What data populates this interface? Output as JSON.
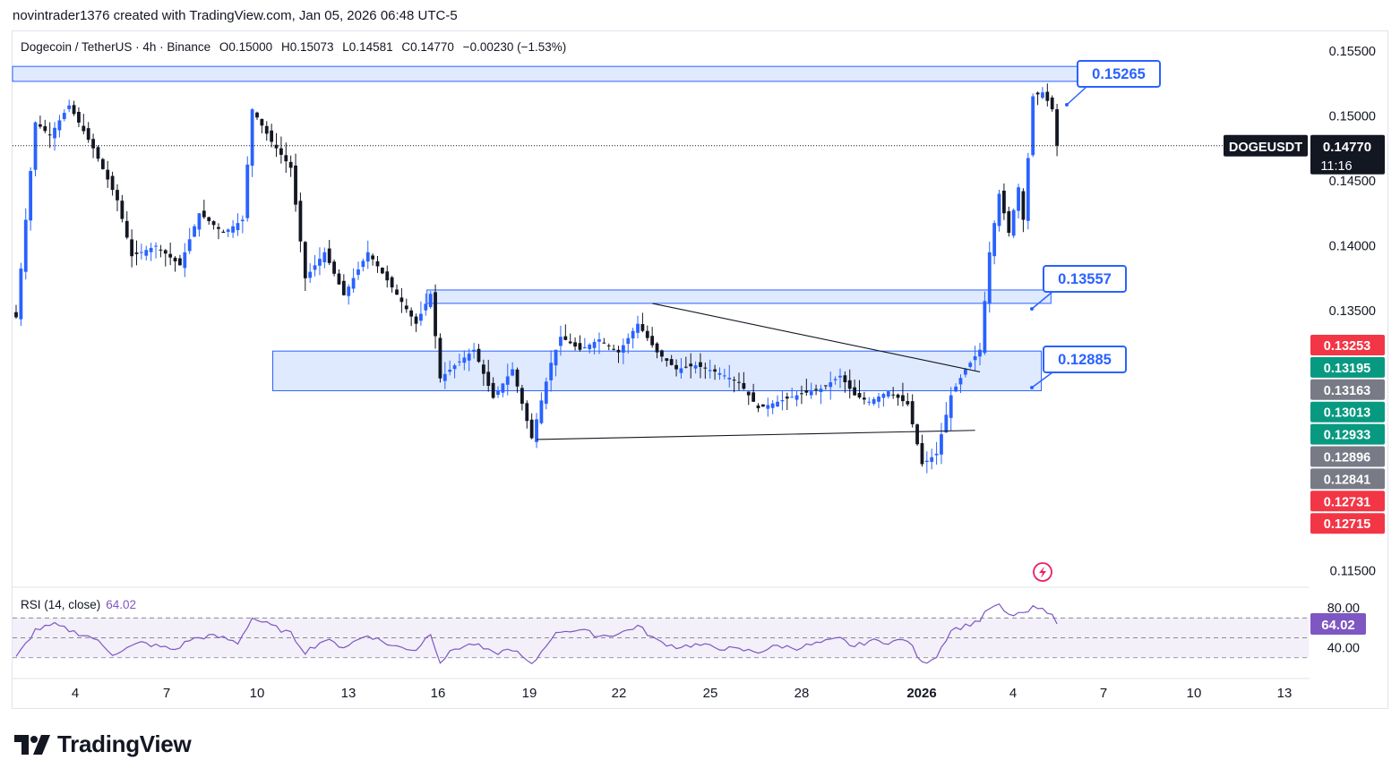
{
  "header": {
    "attribution": "novintrader1376 created with TradingView.com, Jan 05, 2026 06:48 UTC-5"
  },
  "legend": {
    "symbol_line": "Dogecoin / TetherUS · 4h · Binance",
    "open": "O0.15000",
    "high": "H0.15073",
    "low": "L0.14581",
    "close": "C0.14770",
    "change": "−0.00230 (−1.53%)"
  },
  "rsi": {
    "label": "RSI (14, close)",
    "value": "64.02",
    "scale_labels": [
      "80.00",
      "40.00"
    ],
    "upper": 70,
    "middle": 50,
    "lower": 30,
    "color": "#7e57c2"
  },
  "footer": {
    "brand": "TradingView"
  },
  "colors": {
    "up": "#2962ff",
    "down": "#131722",
    "zone_fill": "#dbe6ff",
    "zone_border": "#2962ff"
  },
  "chart_data": {
    "type": "candlestick",
    "symbol": "DOGEUSDT",
    "interval": "4h",
    "ylim": [
      0.1138,
      0.1565
    ],
    "y_ticks": [
      "0.15500",
      "0.15000",
      "0.14500",
      "0.14000",
      "0.13500",
      "0.11500"
    ],
    "x_ticks": [
      "4",
      "7",
      "10",
      "13",
      "16",
      "19",
      "22",
      "25",
      "28",
      "2026",
      "4",
      "7",
      "10",
      "13"
    ],
    "last_price": {
      "symbol_tag": "DOGEUSDT",
      "price": "0.14770",
      "countdown": "11:16",
      "value": 0.1477
    },
    "price_tags": [
      {
        "label": "0.13253",
        "value": 0.13253,
        "color": "#f23645"
      },
      {
        "label": "0.13195",
        "value": 0.13195,
        "color": "#089981"
      },
      {
        "label": "0.13163",
        "value": 0.13163,
        "color": "#787b86"
      },
      {
        "label": "0.13013",
        "value": 0.13013,
        "color": "#089981"
      },
      {
        "label": "0.12933",
        "value": 0.12933,
        "color": "#089981"
      },
      {
        "label": "0.12896",
        "value": 0.12896,
        "color": "#787b86"
      },
      {
        "label": "0.12841",
        "value": 0.12841,
        "color": "#787b86"
      },
      {
        "label": "0.12731",
        "value": 0.12731,
        "color": "#f23645"
      },
      {
        "label": "0.12715",
        "value": 0.12715,
        "color": "#f23645"
      }
    ],
    "zones": [
      {
        "label": "0.15265",
        "top": 0.1538,
        "bottom": 0.15265,
        "x_start": 0,
        "x_end": 220
      },
      {
        "label": "0.13557",
        "top": 0.1366,
        "bottom": 0.13557,
        "x_start": 86,
        "x_end": 214
      },
      {
        "label": "0.12885",
        "top": 0.1319,
        "bottom": 0.12885,
        "x_start": 54,
        "x_end": 212
      }
    ],
    "trendlines": [
      {
        "from": [
          132,
          0.13557
        ],
        "to": [
          200,
          0.1303
        ]
      },
      {
        "from": [
          108,
          0.1251
        ],
        "to": [
          199,
          0.1258
        ]
      }
    ],
    "pivots": [
      [
        0,
        0.1345
      ],
      [
        4,
        0.1495
      ],
      [
        7,
        0.1485
      ],
      [
        11,
        0.1508
      ],
      [
        16,
        0.1475
      ],
      [
        21,
        0.1435
      ],
      [
        24,
        0.1392
      ],
      [
        29,
        0.14
      ],
      [
        34,
        0.1385
      ],
      [
        38,
        0.1425
      ],
      [
        43,
        0.141
      ],
      [
        47,
        0.142
      ],
      [
        49,
        0.1505
      ],
      [
        53,
        0.148
      ],
      [
        57,
        0.146
      ],
      [
        60,
        0.1375
      ],
      [
        64,
        0.1395
      ],
      [
        68,
        0.1362
      ],
      [
        73,
        0.1395
      ],
      [
        78,
        0.1368
      ],
      [
        83,
        0.134
      ],
      [
        86,
        0.1363
      ],
      [
        88,
        0.1298
      ],
      [
        91,
        0.1308
      ],
      [
        95,
        0.132
      ],
      [
        99,
        0.1283
      ],
      [
        103,
        0.1305
      ],
      [
        107,
        0.1252
      ],
      [
        111,
        0.131
      ],
      [
        113,
        0.133
      ],
      [
        117,
        0.132
      ],
      [
        121,
        0.1328
      ],
      [
        125,
        0.1318
      ],
      [
        129,
        0.134
      ],
      [
        133,
        0.1318
      ],
      [
        137,
        0.1305
      ],
      [
        141,
        0.1308
      ],
      [
        146,
        0.1302
      ],
      [
        150,
        0.1295
      ],
      [
        154,
        0.1275
      ],
      [
        158,
        0.128
      ],
      [
        162,
        0.1285
      ],
      [
        167,
        0.129
      ],
      [
        171,
        0.13
      ],
      [
        174,
        0.1285
      ],
      [
        177,
        0.128
      ],
      [
        181,
        0.1288
      ],
      [
        185,
        0.1278
      ],
      [
        188,
        0.1232
      ],
      [
        191,
        0.124
      ],
      [
        194,
        0.1285
      ],
      [
        197,
        0.1305
      ],
      [
        200,
        0.132
      ],
      [
        202,
        0.1395
      ],
      [
        204,
        0.144
      ],
      [
        206,
        0.141
      ],
      [
        208,
        0.1445
      ],
      [
        209,
        0.142
      ],
      [
        211,
        0.1515
      ],
      [
        213,
        0.1518
      ],
      [
        215,
        0.1505
      ],
      [
        216,
        0.1477
      ]
    ],
    "rsi_pivots": [
      [
        0,
        30
      ],
      [
        4,
        58
      ],
      [
        8,
        63
      ],
      [
        12,
        56
      ],
      [
        16,
        50
      ],
      [
        20,
        34
      ],
      [
        26,
        45
      ],
      [
        33,
        38
      ],
      [
        36,
        48
      ],
      [
        40,
        52
      ],
      [
        43,
        50
      ],
      [
        46,
        45
      ],
      [
        49,
        70
      ],
      [
        53,
        62
      ],
      [
        57,
        54
      ],
      [
        60,
        36
      ],
      [
        64,
        48
      ],
      [
        68,
        41
      ],
      [
        73,
        53
      ],
      [
        78,
        42
      ],
      [
        83,
        38
      ],
      [
        86,
        55
      ],
      [
        88,
        26
      ],
      [
        91,
        39
      ],
      [
        95,
        44
      ],
      [
        99,
        34
      ],
      [
        103,
        39
      ],
      [
        107,
        22
      ],
      [
        111,
        50
      ],
      [
        113,
        57
      ],
      [
        117,
        58
      ],
      [
        121,
        52
      ],
      [
        125,
        54
      ],
      [
        129,
        62
      ],
      [
        133,
        47
      ],
      [
        137,
        41
      ],
      [
        141,
        43
      ],
      [
        146,
        40
      ],
      [
        150,
        38
      ],
      [
        154,
        36
      ],
      [
        158,
        42
      ],
      [
        162,
        40
      ],
      [
        167,
        45
      ],
      [
        171,
        49
      ],
      [
        174,
        41
      ],
      [
        177,
        47
      ],
      [
        181,
        46
      ],
      [
        185,
        48
      ],
      [
        188,
        24
      ],
      [
        191,
        32
      ],
      [
        194,
        58
      ],
      [
        197,
        62
      ],
      [
        200,
        68
      ],
      [
        202,
        80
      ],
      [
        204,
        82
      ],
      [
        206,
        72
      ],
      [
        208,
        75
      ],
      [
        209,
        73
      ],
      [
        211,
        80
      ],
      [
        213,
        78
      ],
      [
        215,
        76
      ],
      [
        216,
        64
      ]
    ]
  }
}
